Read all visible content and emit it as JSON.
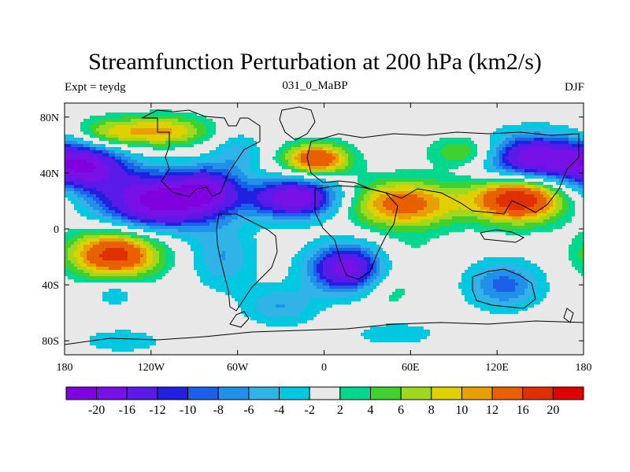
{
  "title": "Streamfunction Perturbation at 200 hPa (km2/s)",
  "left_label": "Expt = teydg",
  "center_label": "031_0_MaBP",
  "right_label": "DJF",
  "chart_data": {
    "type": "heatmap",
    "projection": "cylindrical-equidistant",
    "x_range": [
      -180,
      180
    ],
    "y_range": [
      -90,
      90
    ],
    "x_ticks": [
      {
        "value": -180,
        "label": "180"
      },
      {
        "value": -120,
        "label": "120W"
      },
      {
        "value": -60,
        "label": "60W"
      },
      {
        "value": 0,
        "label": "0"
      },
      {
        "value": 60,
        "label": "60E"
      },
      {
        "value": 120,
        "label": "120E"
      },
      {
        "value": 180,
        "label": "180"
      }
    ],
    "y_ticks": [
      {
        "value": 80,
        "label": "80N"
      },
      {
        "value": 40,
        "label": "40N"
      },
      {
        "value": 0,
        "label": "0"
      },
      {
        "value": -40,
        "label": "40S"
      },
      {
        "value": -80,
        "label": "80S"
      }
    ],
    "colorbar": {
      "labels": [
        "-20",
        "-16",
        "-12",
        "-10",
        "-8",
        "-6",
        "-4",
        "-2",
        "2",
        "4",
        "6",
        "8",
        "10",
        "12",
        "16",
        "20"
      ],
      "colors": [
        "#8000e0",
        "#7a10e8",
        "#5a1ae8",
        "#2020e0",
        "#1a60e8",
        "#2090e8",
        "#30b4e8",
        "#00c8e0",
        "#e8e8e8",
        "#00d890",
        "#40d030",
        "#a0d820",
        "#e0d000",
        "#e8a000",
        "#e86000",
        "#e03000",
        "#e00000"
      ]
    },
    "features": [
      {
        "lon": -165,
        "lat": 45,
        "value": -18,
        "sx": 20,
        "sy": 12
      },
      {
        "lon": -115,
        "lat": 20,
        "value": -22,
        "sx": 28,
        "sy": 14
      },
      {
        "lon": -80,
        "lat": 28,
        "value": -12,
        "sx": 16,
        "sy": 12
      },
      {
        "lon": -20,
        "lat": 22,
        "value": -20,
        "sx": 22,
        "sy": 10
      },
      {
        "lon": 145,
        "lat": 50,
        "value": -20,
        "sx": 25,
        "sy": 12
      },
      {
        "lon": -145,
        "lat": -18,
        "value": 18,
        "sx": 22,
        "sy": 12
      },
      {
        "lon": -5,
        "lat": 50,
        "value": 16,
        "sx": 16,
        "sy": 8
      },
      {
        "lon": 55,
        "lat": 18,
        "value": 14,
        "sx": 28,
        "sy": 12
      },
      {
        "lon": 135,
        "lat": 22,
        "value": 20,
        "sx": 22,
        "sy": 12
      },
      {
        "lon": 100,
        "lat": 55,
        "value": 8,
        "sx": 18,
        "sy": 8
      },
      {
        "lon": 15,
        "lat": -28,
        "value": -18,
        "sx": 18,
        "sy": 12
      },
      {
        "lon": -70,
        "lat": -20,
        "value": -6,
        "sx": 16,
        "sy": 16
      },
      {
        "lon": -30,
        "lat": -55,
        "value": -6,
        "sx": 18,
        "sy": 10
      },
      {
        "lon": 125,
        "lat": -40,
        "value": -9,
        "sx": 18,
        "sy": 12
      },
      {
        "lon": 60,
        "lat": -20,
        "value": 2,
        "sx": 15,
        "sy": 15
      },
      {
        "lon": -145,
        "lat": -45,
        "value": -4,
        "sx": 12,
        "sy": 8
      },
      {
        "lon": -110,
        "lat": 70,
        "value": 10,
        "sx": 22,
        "sy": 8
      },
      {
        "lon": -150,
        "lat": 68,
        "value": 8,
        "sx": 18,
        "sy": 8
      },
      {
        "lon": 45,
        "lat": -45,
        "value": 3,
        "sx": 12,
        "sy": 10
      },
      {
        "lon": 50,
        "lat": -75,
        "value": -4,
        "sx": 20,
        "sy": 6
      },
      {
        "lon": -140,
        "lat": -80,
        "value": -4,
        "sx": 20,
        "sy": 6
      },
      {
        "lon": -60,
        "lat": 55,
        "value": -5,
        "sx": 12,
        "sy": 10
      }
    ]
  }
}
